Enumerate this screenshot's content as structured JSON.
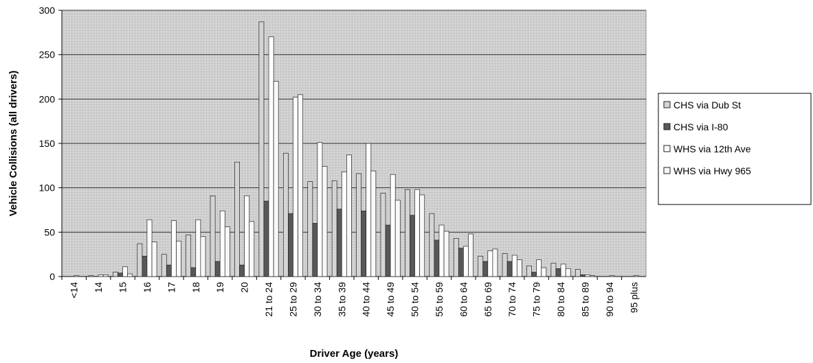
{
  "chart_data": {
    "type": "bar",
    "x_label": "Driver Age (years)",
    "y_label": "Vehicle Collisions (all drivers)",
    "categories": [
      "<14",
      "14",
      "15",
      "16",
      "17",
      "18",
      "19",
      "20",
      "21 to 24",
      "25 to 29",
      "30 to 34",
      "35 to 39",
      "40 to 44",
      "45 to 49",
      "50 to 54",
      "55 to 59",
      "60 to 64",
      "65 to 69",
      "70 to 74",
      "75 to 79",
      "80 to 84",
      "85 to 89",
      "90 to 94",
      "95 plus"
    ],
    "series": [
      {
        "name": "CHS via Dub St",
        "color": "#d4d4d4",
        "values": [
          0,
          1,
          5,
          37,
          25,
          47,
          91,
          129,
          287,
          139,
          107,
          108,
          116,
          94,
          98,
          71,
          43,
          23,
          26,
          12,
          15,
          8,
          0,
          0
        ]
      },
      {
        "name": "CHS via I-80",
        "color": "#585858",
        "values": [
          0,
          0,
          4,
          23,
          13,
          10,
          17,
          13,
          85,
          71,
          60,
          76,
          74,
          58,
          69,
          41,
          32,
          17,
          17,
          5,
          9,
          2,
          0,
          0
        ]
      },
      {
        "name": "WHS via 12th Ave",
        "color": "#ffffff",
        "values": [
          1,
          2,
          11,
          64,
          63,
          64,
          74,
          91,
          270,
          202,
          151,
          118,
          150,
          115,
          98,
          58,
          34,
          29,
          24,
          19,
          14,
          2,
          1,
          1
        ]
      },
      {
        "name": "WHS via Hwy 965",
        "color": "#f8f8f8",
        "values": [
          0,
          2,
          3,
          39,
          40,
          45,
          56,
          62,
          220,
          205,
          124,
          137,
          119,
          86,
          92,
          51,
          48,
          31,
          19,
          10,
          9,
          1,
          0,
          0
        ]
      }
    ],
    "ylim": [
      0,
      300
    ],
    "yticks": [
      0,
      50,
      100,
      150,
      200,
      250,
      300
    ],
    "grid": true,
    "legend": "right"
  }
}
